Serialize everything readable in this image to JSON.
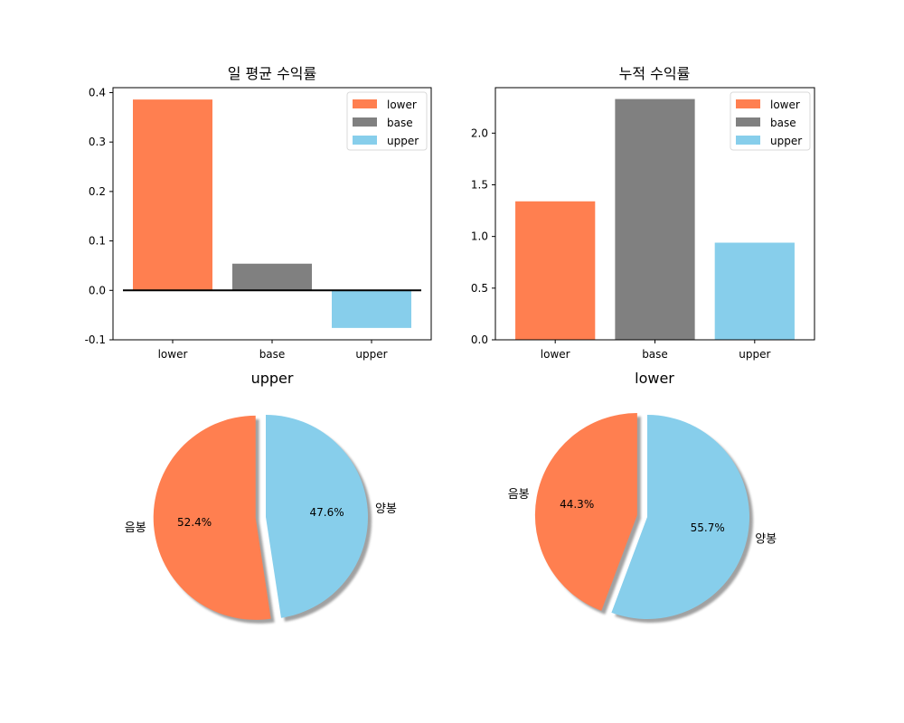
{
  "colors": {
    "lower": "#FF7F50",
    "base": "#808080",
    "upper": "#87CEEB"
  },
  "chart_data": [
    {
      "type": "bar",
      "title": "일 평균 수익률",
      "categories": [
        "lower",
        "base",
        "upper"
      ],
      "values": [
        0.386,
        0.054,
        -0.076
      ],
      "ylim": [
        -0.1,
        0.41
      ],
      "yticks": [
        -0.1,
        0.0,
        0.1,
        0.2,
        0.3,
        0.4
      ],
      "ytick_labels": [
        "-0.1",
        "0.0",
        "0.1",
        "0.2",
        "0.3",
        "0.4"
      ],
      "zero_line": true,
      "legend": [
        "lower",
        "base",
        "upper"
      ],
      "legend_position": "top-right",
      "grid": false
    },
    {
      "type": "bar",
      "title": "누적 수익률",
      "categories": [
        "lower",
        "base",
        "upper"
      ],
      "values": [
        1.34,
        2.33,
        0.94
      ],
      "ylim": [
        0.0,
        2.44
      ],
      "yticks": [
        0.0,
        0.5,
        1.0,
        1.5,
        2.0
      ],
      "ytick_labels": [
        "0.0",
        "0.5",
        "1.0",
        "1.5",
        "2.0"
      ],
      "legend": [
        "lower",
        "base",
        "upper"
      ],
      "legend_position": "top-right",
      "grid": false
    },
    {
      "type": "pie",
      "title": "upper",
      "labels": [
        "음봉",
        "양봉"
      ],
      "values": [
        52.4,
        47.6
      ],
      "pct_labels": [
        "52.4%",
        "47.6%"
      ],
      "explode": [
        0.1,
        0
      ],
      "shadow": true
    },
    {
      "type": "pie",
      "title": "lower",
      "labels": [
        "음봉",
        "양봉"
      ],
      "values": [
        44.3,
        55.7
      ],
      "pct_labels": [
        "44.3%",
        "55.7%"
      ],
      "explode": [
        0.1,
        0
      ],
      "shadow": true
    }
  ]
}
